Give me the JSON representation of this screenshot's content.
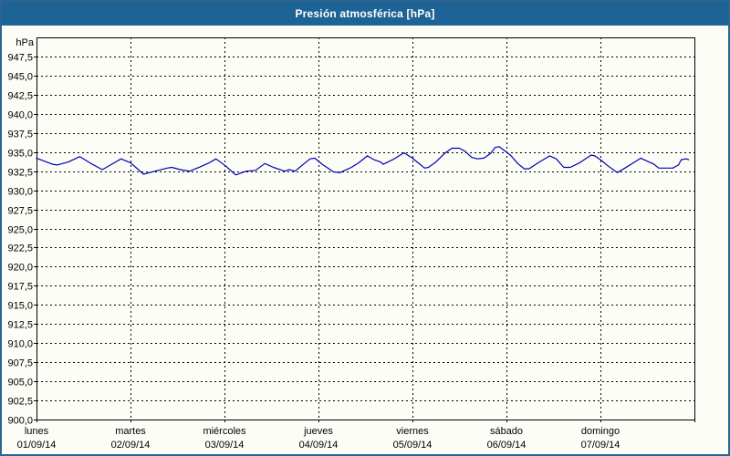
{
  "window": {
    "title_bar": "Presión atmosférica [hPa]"
  },
  "colors": {
    "title_bar_bg": "#1d6395",
    "title_text": "#ffffff",
    "frame_border": "#2d648f",
    "page_bg": "#fdfdf7",
    "axis": "#000000",
    "line": "#0000b4"
  },
  "chart_data": {
    "type": "line",
    "title": "Presión atmosférica [hPa]",
    "ylabel": "hPa",
    "ylim": [
      900,
      950
    ],
    "ytick_step": 2.5,
    "grid": "dashed",
    "legend_position": "none",
    "yticks": [
      {
        "value": 947.5,
        "label": "947,5"
      },
      {
        "value": 945.0,
        "label": "945,0"
      },
      {
        "value": 942.5,
        "label": "942,5"
      },
      {
        "value": 940.0,
        "label": "940,0"
      },
      {
        "value": 937.5,
        "label": "937,5"
      },
      {
        "value": 935.0,
        "label": "935,0"
      },
      {
        "value": 932.5,
        "label": "932,5"
      },
      {
        "value": 930.0,
        "label": "930,0"
      },
      {
        "value": 927.5,
        "label": "927,5"
      },
      {
        "value": 925.0,
        "label": "925,0"
      },
      {
        "value": 922.5,
        "label": "922,5"
      },
      {
        "value": 920.0,
        "label": "920,0"
      },
      {
        "value": 917.5,
        "label": "917,5"
      },
      {
        "value": 915.0,
        "label": "915,0"
      },
      {
        "value": 912.5,
        "label": "912,5"
      },
      {
        "value": 910.0,
        "label": "910,0"
      },
      {
        "value": 907.5,
        "label": "907,5"
      },
      {
        "value": 905.0,
        "label": "905,0"
      },
      {
        "value": 902.5,
        "label": "902,5"
      },
      {
        "value": 900.0,
        "label": "900,0"
      }
    ],
    "x_axis_days": [
      {
        "weekday": "lunes",
        "date": "01/09/14"
      },
      {
        "weekday": "martes",
        "date": "02/09/14"
      },
      {
        "weekday": "miércoles",
        "date": "03/09/14"
      },
      {
        "weekday": "jueves",
        "date": "04/09/14"
      },
      {
        "weekday": "viernes",
        "date": "05/09/14"
      },
      {
        "weekday": "sábado",
        "date": "06/09/14"
      },
      {
        "weekday": "domingo",
        "date": "07/09/14"
      }
    ],
    "series": [
      {
        "name": "Presión atmosférica",
        "unit": "hPa",
        "color": "#0000b4",
        "points_day_hpa": [
          [
            0.0,
            934.2
          ],
          [
            0.17,
            933.4
          ],
          [
            0.22,
            933.3
          ],
          [
            0.34,
            933.7
          ],
          [
            0.46,
            934.4
          ],
          [
            0.58,
            933.5
          ],
          [
            0.7,
            932.7
          ],
          [
            0.8,
            933.4
          ],
          [
            0.9,
            934.1
          ],
          [
            1.0,
            933.6
          ],
          [
            1.14,
            932.1
          ],
          [
            1.26,
            932.5
          ],
          [
            1.39,
            932.9
          ],
          [
            1.44,
            933.0
          ],
          [
            1.53,
            932.7
          ],
          [
            1.63,
            932.5
          ],
          [
            1.75,
            933.1
          ],
          [
            1.84,
            933.6
          ],
          [
            1.91,
            934.1
          ],
          [
            2.01,
            933.2
          ],
          [
            2.12,
            932.0
          ],
          [
            2.23,
            932.5
          ],
          [
            2.33,
            932.6
          ],
          [
            2.43,
            933.5
          ],
          [
            2.52,
            933.0
          ],
          [
            2.64,
            932.5
          ],
          [
            2.69,
            932.7
          ],
          [
            2.75,
            932.5
          ],
          [
            2.83,
            933.3
          ],
          [
            2.91,
            934.1
          ],
          [
            2.96,
            934.2
          ],
          [
            3.04,
            933.4
          ],
          [
            3.16,
            932.4
          ],
          [
            3.23,
            932.3
          ],
          [
            3.35,
            933.0
          ],
          [
            3.43,
            933.6
          ],
          [
            3.52,
            934.5
          ],
          [
            3.59,
            934.0
          ],
          [
            3.66,
            933.7
          ],
          [
            3.69,
            933.4
          ],
          [
            3.79,
            934.0
          ],
          [
            3.91,
            934.9
          ],
          [
            4.0,
            934.2
          ],
          [
            4.05,
            933.7
          ],
          [
            4.13,
            932.9
          ],
          [
            4.17,
            933.0
          ],
          [
            4.24,
            933.6
          ],
          [
            4.34,
            934.8
          ],
          [
            4.42,
            935.5
          ],
          [
            4.5,
            935.5
          ],
          [
            4.56,
            935.1
          ],
          [
            4.63,
            934.3
          ],
          [
            4.69,
            934.1
          ],
          [
            4.76,
            934.2
          ],
          [
            4.83,
            934.8
          ],
          [
            4.88,
            935.6
          ],
          [
            4.92,
            935.7
          ],
          [
            4.99,
            935.1
          ],
          [
            5.05,
            934.5
          ],
          [
            5.12,
            933.5
          ],
          [
            5.19,
            932.8
          ],
          [
            5.24,
            932.8
          ],
          [
            5.34,
            933.6
          ],
          [
            5.46,
            934.5
          ],
          [
            5.53,
            934.1
          ],
          [
            5.61,
            933.0
          ],
          [
            5.68,
            933.0
          ],
          [
            5.78,
            933.6
          ],
          [
            5.9,
            934.6
          ],
          [
            5.94,
            934.5
          ],
          [
            6.0,
            934.0
          ],
          [
            6.08,
            933.2
          ],
          [
            6.17,
            932.4
          ],
          [
            6.18,
            932.3
          ],
          [
            6.26,
            932.9
          ],
          [
            6.34,
            933.5
          ],
          [
            6.43,
            934.2
          ],
          [
            6.5,
            933.8
          ],
          [
            6.57,
            933.4
          ],
          [
            6.62,
            932.9
          ],
          [
            6.7,
            932.9
          ],
          [
            6.77,
            932.9
          ],
          [
            6.83,
            933.3
          ],
          [
            6.86,
            934.0
          ],
          [
            6.91,
            934.1
          ],
          [
            6.94,
            934.0
          ]
        ]
      }
    ]
  }
}
